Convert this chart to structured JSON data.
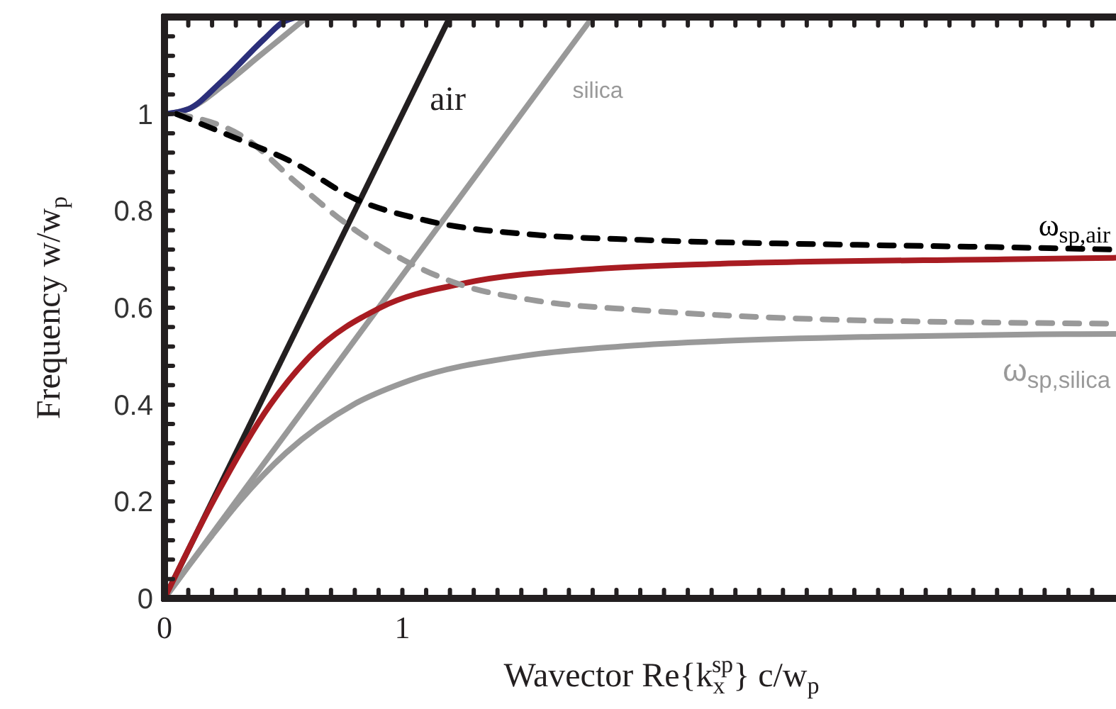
{
  "chart_data": {
    "type": "line",
    "xlabel": "Wavector  Re{k$_{x}$$^{sp}$} c/w$_{p}$",
    "ylabel": "Frequency w/w$_{p}$",
    "xlim": [
      0,
      4
    ],
    "ylim": [
      0,
      1.2
    ],
    "xticks": [
      0,
      {
        "value": 0.1,
        "label": null
      },
      {
        "value": 0.2,
        "label": null
      },
      {
        "value": 0.3,
        "label": null
      },
      {
        "value": 0.4,
        "label": null
      },
      {
        "value": 0.5,
        "label": null
      },
      {
        "value": 0.6,
        "label": null
      },
      {
        "value": 0.7,
        "label": null
      },
      {
        "value": 0.8,
        "label": null
      },
      {
        "value": 0.9,
        "label": null
      },
      1,
      {
        "value": 1.1,
        "label": null
      },
      {
        "value": 1.2,
        "label": null
      },
      {
        "value": 1.3,
        "label": null
      },
      {
        "value": 1.4,
        "label": null
      },
      {
        "value": 1.5,
        "label": null
      },
      {
        "value": 1.6,
        "label": null
      },
      {
        "value": 1.7,
        "label": null
      },
      {
        "value": 1.8,
        "label": null
      },
      {
        "value": 1.9,
        "label": null
      },
      {
        "value": 2,
        "label": null
      },
      {
        "value": 2.1,
        "label": null
      },
      {
        "value": 2.2,
        "label": null
      },
      {
        "value": 2.3,
        "label": null
      },
      {
        "value": 2.4,
        "label": null
      },
      {
        "value": 2.5,
        "label": null
      },
      {
        "value": 2.6,
        "label": null
      },
      {
        "value": 2.7,
        "label": null
      },
      {
        "value": 2.8,
        "label": null
      },
      {
        "value": 2.9,
        "label": null
      },
      {
        "value": 3,
        "label": null
      },
      {
        "value": 3.1,
        "label": null
      },
      {
        "value": 3.2,
        "label": null
      },
      {
        "value": 3.3,
        "label": null
      },
      {
        "value": 3.4,
        "label": null
      },
      {
        "value": 3.5,
        "label": null
      },
      {
        "value": 3.6,
        "label": null
      },
      {
        "value": 3.7,
        "label": null
      },
      {
        "value": 3.8,
        "label": null
      },
      {
        "value": 3.9,
        "label": null
      }
    ],
    "yticks": [
      0,
      {
        "value": 0.04,
        "label": null
      },
      {
        "value": 0.08,
        "label": null
      },
      {
        "value": 0.12,
        "label": null
      },
      {
        "value": 0.16,
        "label": null
      },
      0.2,
      {
        "value": 0.24,
        "label": null
      },
      {
        "value": 0.28,
        "label": null
      },
      {
        "value": 0.32,
        "label": null
      },
      {
        "value": 0.36,
        "label": null
      },
      0.4,
      {
        "value": 0.44,
        "label": null
      },
      {
        "value": 0.48,
        "label": null
      },
      {
        "value": 0.52,
        "label": null
      },
      {
        "value": 0.56,
        "label": null
      },
      0.6,
      {
        "value": 0.64,
        "label": null
      },
      {
        "value": 0.68,
        "label": null
      },
      {
        "value": 0.72,
        "label": null
      },
      {
        "value": 0.76,
        "label": null
      },
      0.8,
      {
        "value": 0.84,
        "label": null
      },
      {
        "value": 0.88,
        "label": null
      },
      {
        "value": 0.92,
        "label": null
      },
      {
        "value": 0.96,
        "label": null
      },
      1,
      {
        "value": 1.04,
        "label": null
      },
      {
        "value": 1.08,
        "label": null
      },
      {
        "value": 1.12,
        "label": null
      },
      {
        "value": 1.16,
        "label": null
      },
      {
        "value": 1.2,
        "label": null
      }
    ],
    "grid": false,
    "marker": "none",
    "series": [
      {
        "name": "air",
        "color": "#231f20",
        "line_style": "solid",
        "x": [
          0,
          1.2
        ],
        "values": [
          0,
          1.2
        ]
      },
      {
        "name": "silica",
        "color": "#999999",
        "line_style": "solid",
        "x": [
          0,
          1.8
        ],
        "values": [
          0,
          1.2
        ]
      },
      {
        "color": "#999999",
        "line_style": "solid",
        "x": [
          0,
          0.1,
          0.2,
          0.315,
          0.51,
          0.794,
          1.031,
          1.5,
          1.914,
          2.285,
          2.98,
          3.68,
          4.0
        ],
        "values": [
          0,
          0.066,
          0.13,
          0.2,
          0.3,
          0.4,
          0.45,
          0.5,
          0.52,
          0.53,
          0.54,
          0.545,
          0.546
        ]
      },
      {
        "color": "#a81c22",
        "line_style": "solid",
        "x": [
          0,
          0.204,
          0.445,
          0.612,
          0.907,
          1.254,
          1.817,
          2.29,
          3.53,
          4.0
        ],
        "values": [
          0,
          0.2,
          0.4,
          0.5,
          0.6,
          0.65,
          0.68,
          0.69,
          0.7,
          0.703
        ]
      },
      {
        "color": "#999999",
        "line_style": "solid",
        "x": [
          0,
          0.1,
          0.25,
          0.4,
          0.5,
          0.6
        ],
        "values": [
          1.0,
          1.01,
          1.06,
          1.12,
          1.16,
          1.2
        ]
      },
      {
        "color": "#2b2f7a",
        "line_style": "solid",
        "x": [
          0,
          0.1,
          0.24,
          0.42,
          0.5,
          0.56
        ],
        "values": [
          1.0,
          1.01,
          1.067,
          1.155,
          1.19,
          1.2
        ]
      },
      {
        "name": "ω$_{sp,silica}$",
        "color": "#999999",
        "line_style": "dashed",
        "x": [
          0.05,
          0.34,
          0.55,
          0.76,
          1.0,
          1.23,
          1.57,
          2.0,
          2.76,
          3.4,
          4.0
        ],
        "values": [
          1.0,
          0.95,
          0.86,
          0.775,
          0.7,
          0.65,
          0.614,
          0.595,
          0.576,
          0.57,
          0.567
        ]
      },
      {
        "name": "ω$_{sp,air}$",
        "color": "#000000",
        "line_style": "dashed",
        "x": [
          0.05,
          0.3,
          0.54,
          0.8,
          1.1,
          1.57,
          2.0,
          2.88,
          3.5,
          4.0
        ],
        "values": [
          1.0,
          0.95,
          0.9,
          0.825,
          0.78,
          0.75,
          0.74,
          0.73,
          0.725,
          0.72
        ]
      }
    ]
  }
}
